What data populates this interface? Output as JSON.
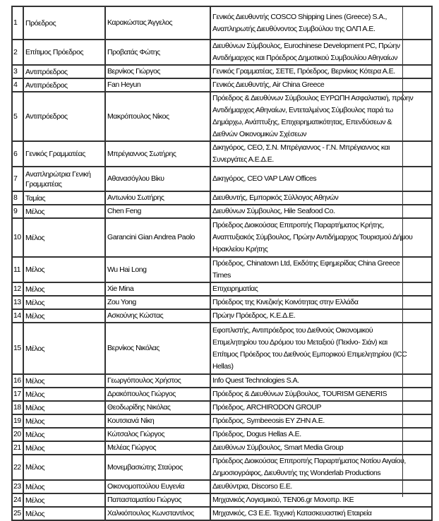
{
  "rows": [
    {
      "num": "1",
      "role": "Πρόεδρος",
      "name": "Καρακώστας Άγγελος",
      "desc": "Γενικός Διευθυντής COSCO Shipping Lines (Greece) S.A.,\nΑναπληρωτής Διευθύνοντος Συμβούλου της ΟΛΠ Α.Ε."
    },
    {
      "num": "2",
      "role": "Επίτιμος Πρόεδρος",
      "name": "Προβατάς Φώτης",
      "desc": "Διευθύνων Σύμβουλος, Eurochinese Development PC, Πρώην\nΑντιδήμαρχος και Πρόεδρος Δημοτικού Συμβουλίου Αθηναίων"
    },
    {
      "num": "3",
      "role": "Αντιπρόεδρος",
      "name": "Βερνίκος Γιώργος",
      "desc": "Γενικός Γραμματέας, ΣΕΤΕ, Πρόεδρος, Βερνίκος Κότερα Α.Ε."
    },
    {
      "num": "4",
      "role": "Αντιπρόεδρος",
      "name": "Fan Heyun",
      "desc": "Γενικός Διευθυντής, Air China Greece"
    },
    {
      "num": "5",
      "role": "Αντιπρόεδρος",
      "name": "Μακρόπουλος Νίκος",
      "desc": "Πρόεδρος & Διευθύνων Σύμβουλος ΕΥΡΩΠΗ Ασφαλιστική, πρώην\nΑντιδήμαρχος Αθηναίων,  Εντεταλμένος Σύμβουλος παρά τω\nΔημάρχω, Ανάπτυξης, Επιχειρηματικότητας, Επενδύσεων &\nΔιεθνών Οικονομικών Σχέσεων"
    },
    {
      "num": "6",
      "role": "Γενικός Γραμματέας",
      "name": "Μπρέγιαννος Σωτήρης",
      "desc": "Δικηγόρος, CEO, Σ.Ν. Μπρέγιαννος - Γ.Ν. Μπρέγιαννος και\nΣυνεργάτες Α.Ε.Δ.Ε."
    },
    {
      "num": "7",
      "role": "Αναπληρώτρια Γενική Γραμματέας",
      "name": "Αθανασόγλου Βίκυ",
      "desc": "Δικηγόρος, CEO VAP LAW Offices"
    },
    {
      "num": "8",
      "role": "Ταμίας",
      "name": "Αντωνίου Σωτήρης",
      "desc": "Διευθυντής, Εμπορικός Σύλλογος Αθηνών"
    },
    {
      "num": "9",
      "role": "Μέλος",
      "name": "Chen Feng",
      "desc": "Διευθύνων Σύμβουλος, Hile Seafood Co."
    },
    {
      "num": "10",
      "role": "Μέλος",
      "name": "Garancini Gian Andrea Paolo",
      "desc": "Πρόεδρος Διοικούσας Επιτροπής Παραρτήματος Κρήτης,\nΑναπτυξιακός Σύμβουλος, Πρώην Αντιδήμαρχος Τουρισμού Δήμου\nΗρακλείου Κρήτης"
    },
    {
      "num": "11",
      "role": "Μέλος",
      "name": "Wu Hai Long",
      "desc": "Πρόεδρος, Chinatown Ltd, Εκδότης Εφημερίδας China Greece\nTimes"
    },
    {
      "num": "12",
      "role": "Μέλος",
      "name": "Xie Mina",
      "desc": "Επιχειρηματίας"
    },
    {
      "num": "13",
      "role": "Μέλος",
      "name": "Zou Yong",
      "desc": "Πρόεδρος της Κινεζικής Κοινότητας στην Ελλάδα"
    },
    {
      "num": "14",
      "role": "Μέλος",
      "name": "Ασκούνης Κώστας",
      "desc": "Πρώην Πρόεδρος, Κ.Ε.Δ.Ε."
    },
    {
      "num": "15",
      "role": "Μέλος",
      "name": "Βερνίκος Νικόλας",
      "desc": "Εφοπλιστής, Αντιπρόεδρος του Διεθνούς Οικονομικού\nΕπιμελητηρίου του Δρόμου του Μεταξιού (Πεκίνο- Σιάν) και\nΕπίτιμος Πρόεδρος του Διεθνούς Εμπορικού Επιμελητηρίου (ICC\nHellas)"
    },
    {
      "num": "16",
      "role": "Μέλος",
      "name": "Γεωργόπουλος Χρήστος",
      "desc": "Info Quest Technologies S.A."
    },
    {
      "num": "17",
      "role": "Μέλος",
      "name": "Δρακόπουλος Γιώργος",
      "desc": "Πρόεδρος & Διευθύνων Σύμβουλος, TOURISM GENERIS"
    },
    {
      "num": "18",
      "role": "Μέλος",
      "name": "Θεοδωρίδης Νικόλας",
      "desc": "Πρόεδρος, ARCHIRODON GROUP"
    },
    {
      "num": "19",
      "role": "Μέλος",
      "name": "Κουτσιανά Νίκη",
      "desc": "Πρόεδρος, Symbeeosis ΕΥ ΖΗΝ Α.Ε."
    },
    {
      "num": "20",
      "role": "Μέλος",
      "name": "Κώτσαλος Γιώργος",
      "desc": "Πρόεδρος, Dogus Hellas Α.Ε."
    },
    {
      "num": "21",
      "role": "Μέλος",
      "name": "Μελέας Γιώργος",
      "desc": "Διευθύνων Σύμβουλος, Smart Media Group"
    },
    {
      "num": "22",
      "role": "Μέλος",
      "name": "Μονεμβασιώτης Σταύρος",
      "desc": "Πρόεδρος Διοικούσας Επιτροπής Παραρτήματος Νοτίου Αιγαίου,\nΔημοσιογράφος, Διευθυντής της Wonderlab Productions"
    },
    {
      "num": "23",
      "role": "Μέλος",
      "name": "Οικονομοπούλου Ευγενία",
      "desc": "Διευθύντρια, Discorso Ε.Ε."
    },
    {
      "num": "24",
      "role": "Μέλος",
      "name": "Παπασταματίου Γιώργος",
      "desc": "Μηχανικός Λογισμικού, TEN06.gr Μονοπρ. ΙΚΕ"
    },
    {
      "num": "25",
      "role": "Μέλος",
      "name": "Χαλκιόπουλος Κωνσταντίνος",
      "desc": "Μηχανικός, C3 Ε.Ε. Τεχνική Κατασκευαστική Εταιρεία"
    }
  ]
}
